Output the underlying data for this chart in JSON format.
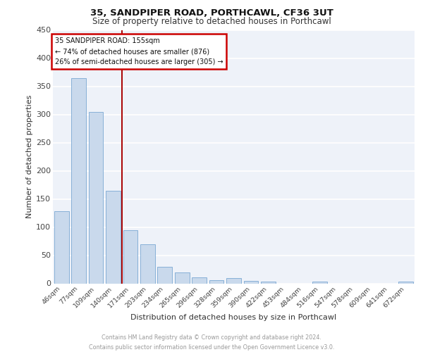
{
  "title": "35, SANDPIPER ROAD, PORTHCAWL, CF36 3UT",
  "subtitle": "Size of property relative to detached houses in Porthcawl",
  "xlabel": "Distribution of detached houses by size in Porthcawl",
  "ylabel": "Number of detached properties",
  "footer_line1": "Contains HM Land Registry data © Crown copyright and database right 2024.",
  "footer_line2": "Contains public sector information licensed under the Open Government Licence v3.0.",
  "categories": [
    "46sqm",
    "77sqm",
    "109sqm",
    "140sqm",
    "171sqm",
    "203sqm",
    "234sqm",
    "265sqm",
    "296sqm",
    "328sqm",
    "359sqm",
    "390sqm",
    "422sqm",
    "453sqm",
    "484sqm",
    "516sqm",
    "547sqm",
    "578sqm",
    "609sqm",
    "641sqm",
    "672sqm"
  ],
  "values": [
    128,
    365,
    304,
    164,
    94,
    69,
    30,
    20,
    11,
    6,
    10,
    5,
    3,
    0,
    0,
    3,
    0,
    0,
    0,
    0,
    3
  ],
  "bar_color": "#c9d9ec",
  "bar_edge_color": "#7aa8d2",
  "background_color": "#eef2f9",
  "grid_color": "#ffffff",
  "annotation_box_text": "35 SANDPIPER ROAD: 155sqm\n← 74% of detached houses are smaller (876)\n26% of semi-detached houses are larger (305) →",
  "annotation_box_color": "#cc0000",
  "vline_x": 3.5,
  "vline_color": "#aa0000",
  "ylim": [
    0,
    450
  ],
  "yticks": [
    0,
    50,
    100,
    150,
    200,
    250,
    300,
    350,
    400,
    450
  ]
}
